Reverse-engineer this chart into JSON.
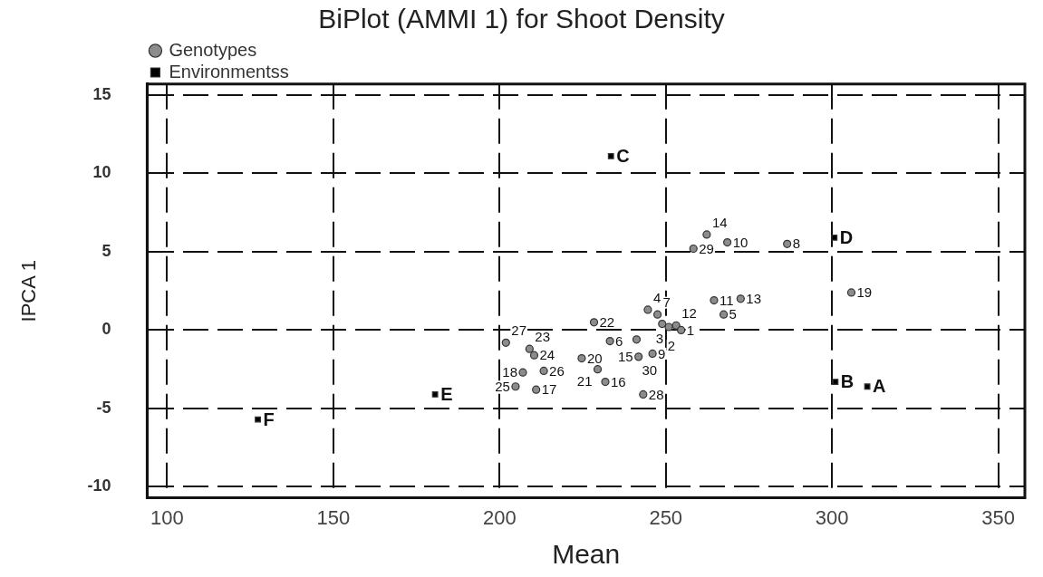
{
  "chart_data": {
    "type": "scatter",
    "title": "BiPlot (AMMI 1) for Shoot Density",
    "xlabel": "Mean",
    "ylabel": "IPCA 1",
    "xlim": [
      94,
      358
    ],
    "xticks": [
      100,
      150,
      200,
      250,
      300,
      350
    ],
    "ylim": [
      -10.7,
      15.7
    ],
    "yticks": [
      -10,
      -5,
      0,
      5,
      10,
      15
    ],
    "grid": true,
    "line_style": "dashed",
    "legend": "top left",
    "series": [
      {
        "name": "Genotypes",
        "marker": "circle",
        "color": "#8c8c8c",
        "x": [
          262.3,
          258.3,
          268.5,
          286.5,
          305.8,
          264.5,
          272.5,
          267.4,
          244.6,
          247.5,
          228.4,
          248.9,
          253.1,
          250.9,
          254.6,
          201.9,
          233.2,
          241.2,
          209,
          210.4,
          224.7,
          241.8,
          246,
          207,
          213.3,
          229.5,
          231.8,
          243.2,
          204.8,
          211
        ],
        "values": [
          6.1,
          5.2,
          5.6,
          5.5,
          2.4,
          1.9,
          2.0,
          1.0,
          1.3,
          1.0,
          0.5,
          0.4,
          0.3,
          0.2,
          0.0,
          -0.8,
          -0.7,
          -0.6,
          -1.2,
          -1.6,
          -1.8,
          -1.7,
          -1.5,
          -2.7,
          -2.6,
          -2.5,
          -3.3,
          -4.1,
          -3.6,
          -3.8
        ]
      },
      {
        "name": "Environmentss",
        "marker": "square",
        "color": "#000000",
        "x": [
          233.5,
          300.7,
          301,
          310.6,
          180.6,
          127.3
        ],
        "values": [
          11.1,
          5.9,
          -3.3,
          -3.6,
          -4.1,
          -5.7
        ]
      }
    ],
    "annotations": [
      {
        "text": "14",
        "x": 262.3,
        "y": 6.1
      },
      {
        "text": "29",
        "x": 258.3,
        "y": 5.2
      },
      {
        "text": "10",
        "x": 268.5,
        "y": 5.6
      },
      {
        "text": "8",
        "x": 286.5,
        "y": 5.5
      },
      {
        "text": "19",
        "x": 305.8,
        "y": 2.4
      },
      {
        "text": "11",
        "x": 264.5,
        "y": 1.9
      },
      {
        "text": "13",
        "x": 272.5,
        "y": 2.0
      },
      {
        "text": "5",
        "x": 267.4,
        "y": 1.0
      },
      {
        "text": "4",
        "x": 244.6,
        "y": 1.3
      },
      {
        "text": "7",
        "x": 247.5,
        "y": 1.0
      },
      {
        "text": "22",
        "x": 228.4,
        "y": 0.5
      },
      {
        "text": "2",
        "x": 248.9,
        "y": 0.4
      },
      {
        "text": "12",
        "x": 253.1,
        "y": 0.3
      },
      {
        "text": "3",
        "x": 250.9,
        "y": 0.2
      },
      {
        "text": "1",
        "x": 254.6,
        "y": 0.0
      },
      {
        "text": "27",
        "x": 201.9,
        "y": -0.8
      },
      {
        "text": "6",
        "x": 233.2,
        "y": -0.7
      },
      {
        "text": "30",
        "x": 241.2,
        "y": -0.6
      },
      {
        "text": "23",
        "x": 209,
        "y": -1.2
      },
      {
        "text": "24",
        "x": 210.4,
        "y": -1.6
      },
      {
        "text": "20",
        "x": 224.7,
        "y": -1.8
      },
      {
        "text": "15",
        "x": 241.8,
        "y": -1.7
      },
      {
        "text": "9",
        "x": 246,
        "y": -1.5
      },
      {
        "text": "18",
        "x": 207,
        "y": -2.7
      },
      {
        "text": "26",
        "x": 213.3,
        "y": -2.6
      },
      {
        "text": "21",
        "x": 229.5,
        "y": -2.5
      },
      {
        "text": "16",
        "x": 231.8,
        "y": -3.3
      },
      {
        "text": "28",
        "x": 243.2,
        "y": -4.1
      },
      {
        "text": "25",
        "x": 204.8,
        "y": -3.6
      },
      {
        "text": "17",
        "x": 211,
        "y": -3.8
      },
      {
        "text": "C",
        "x": 233.5,
        "y": 11.1
      },
      {
        "text": "D",
        "x": 300.7,
        "y": 5.9
      },
      {
        "text": "B",
        "x": 301,
        "y": -3.3
      },
      {
        "text": "A",
        "x": 310.6,
        "y": -3.6
      },
      {
        "text": "E",
        "x": 180.6,
        "y": -4.1
      },
      {
        "text": "F",
        "x": 127.3,
        "y": -5.7
      }
    ]
  }
}
